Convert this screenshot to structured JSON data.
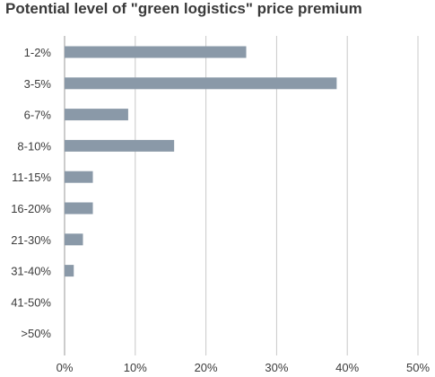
{
  "chart_data": {
    "type": "bar",
    "orientation": "horizontal",
    "title": "Potential level of \"green logistics\" price premium",
    "categories": [
      "1-2%",
      "3-5%",
      "6-7%",
      "8-10%",
      "11-15%",
      "16-20%",
      "21-30%",
      "31-40%",
      "41-50%",
      ">50%"
    ],
    "values": [
      25.7,
      38.5,
      9.0,
      15.5,
      4.0,
      4.0,
      2.6,
      1.3,
      0,
      0
    ],
    "xlim": [
      0,
      50
    ],
    "x_ticks": [
      "0%",
      "10%",
      "20%",
      "30%",
      "40%",
      "50%"
    ],
    "grid": true,
    "bar_color": "#8a99a8",
    "grid_color": "#c8c8c8"
  }
}
